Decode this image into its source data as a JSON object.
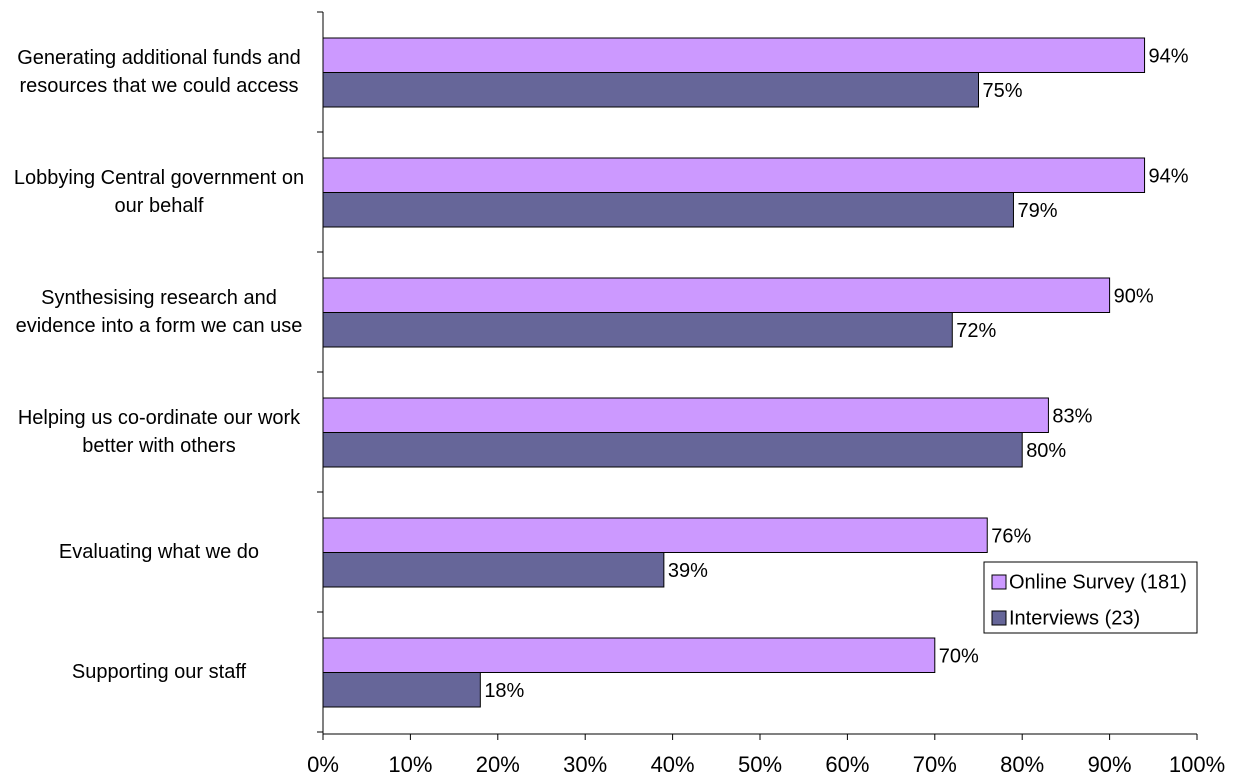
{
  "chart_data": {
    "type": "hbar",
    "categories": [
      "Generating additional funds and resources that we could access",
      "Lobbying Central government on our behalf",
      "Synthesising research and evidence into a form we can use",
      "Helping us co-ordinate our work better with others",
      "Evaluating what we do",
      "Supporting our staff"
    ],
    "series": [
      {
        "name": "Online Survey (181)",
        "color": "#cc99ff",
        "values": [
          94,
          94,
          90,
          83,
          76,
          70
        ],
        "value_labels": [
          "94%",
          "94%",
          "90%",
          "83%",
          "76%",
          "70%"
        ]
      },
      {
        "name": "Interviews (23)",
        "color": "#666699",
        "values": [
          75,
          79,
          72,
          80,
          39,
          18
        ],
        "value_labels": [
          "75%",
          "79%",
          "72%",
          "80%",
          "39%",
          "18%"
        ]
      }
    ],
    "xlim": [
      0,
      100
    ],
    "xticks": [
      {
        "value": 0,
        "label": "0%"
      },
      {
        "value": 10,
        "label": "10%"
      },
      {
        "value": 20,
        "label": "20%"
      },
      {
        "value": 30,
        "label": "30%"
      },
      {
        "value": 40,
        "label": "40%"
      },
      {
        "value": 50,
        "label": "50%"
      },
      {
        "value": 60,
        "label": "60%"
      },
      {
        "value": 70,
        "label": "70%"
      },
      {
        "value": 80,
        "label": "80%"
      },
      {
        "value": 90,
        "label": "90%"
      },
      {
        "value": 100,
        "label": "100%"
      }
    ],
    "legend": "lower-right",
    "grid": false
  }
}
